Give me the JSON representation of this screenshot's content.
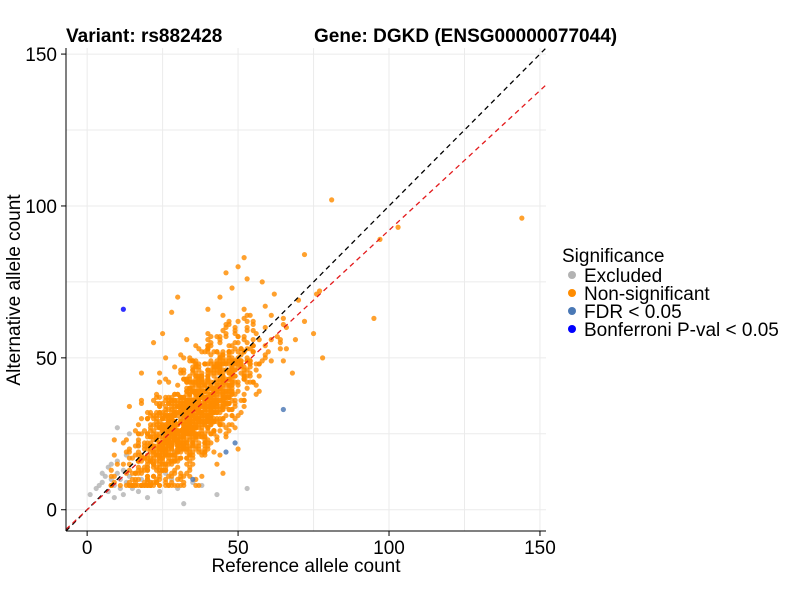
{
  "chart_data": {
    "type": "scatter",
    "title_left": "Variant: rs882428",
    "title_right": "Gene: DGKD (ENSG00000077044)",
    "xlabel": "Reference allele count",
    "ylabel": "Alternative allele count",
    "xlim": [
      -7,
      152
    ],
    "ylim": [
      -7,
      152
    ],
    "x_ticks": [
      0,
      50,
      100,
      150
    ],
    "y_ticks": [
      0,
      50,
      100,
      150
    ],
    "grid": true,
    "reference_lines": [
      {
        "name": "identity",
        "color": "#000000",
        "intercept": 0,
        "slope": 1
      },
      {
        "name": "fit",
        "color": "#e31a1c",
        "intercept": 0,
        "slope": 0.92
      }
    ],
    "legend": {
      "title": "Significance",
      "position": "right",
      "entries": [
        {
          "label": "Excluded",
          "color": "#b3b3b3"
        },
        {
          "label": "Non-significant",
          "color": "#ff8c00"
        },
        {
          "label": "FDR < 0.05",
          "color": "#4a78b5"
        },
        {
          "label": "Bonferroni P-val < 0.05",
          "color": "#0000ff"
        }
      ]
    },
    "series": [
      {
        "name": "Excluded",
        "color": "#b3b3b3",
        "points": [
          [
            1,
            5
          ],
          [
            3,
            7
          ],
          [
            4,
            8
          ],
          [
            5,
            9
          ],
          [
            5,
            12
          ],
          [
            6,
            11
          ],
          [
            7,
            6
          ],
          [
            7,
            14
          ],
          [
            8,
            10
          ],
          [
            8,
            15
          ],
          [
            9,
            4
          ],
          [
            9,
            8
          ],
          [
            10,
            12
          ],
          [
            10,
            16
          ],
          [
            11,
            7
          ],
          [
            11,
            10
          ],
          [
            12,
            5
          ],
          [
            12,
            13
          ],
          [
            13,
            9
          ],
          [
            14,
            11
          ],
          [
            15,
            7
          ],
          [
            16,
            12
          ],
          [
            17,
            6
          ],
          [
            18,
            10
          ],
          [
            19,
            8
          ],
          [
            20,
            14
          ],
          [
            20,
            4
          ],
          [
            21,
            9
          ],
          [
            22,
            15
          ],
          [
            24,
            6
          ],
          [
            26,
            12
          ],
          [
            28,
            10
          ],
          [
            29,
            19
          ],
          [
            30,
            7
          ],
          [
            32,
            2
          ],
          [
            35,
            9
          ],
          [
            38,
            8
          ],
          [
            43,
            5
          ],
          [
            53,
            7
          ],
          [
            10,
            27
          ],
          [
            14,
            25
          ],
          [
            17,
            21
          ],
          [
            13,
            18
          ]
        ]
      },
      {
        "name": "Non-significant",
        "color": "#ff8c00",
        "cluster": {
          "count": 1450,
          "seed": 7,
          "x_mean": 35,
          "x_sd": 10,
          "y_ratio": 0.92,
          "y_sd": 8,
          "x_min": 8,
          "y_min": 8
        },
        "points": [
          [
            144,
            96
          ],
          [
            103,
            93
          ],
          [
            97,
            89
          ],
          [
            95,
            63
          ],
          [
            81,
            102
          ],
          [
            77,
            72
          ],
          [
            76,
            71
          ],
          [
            72,
            84
          ],
          [
            72,
            62
          ],
          [
            70,
            69
          ],
          [
            65,
            63
          ],
          [
            52,
            83
          ],
          [
            50,
            80
          ],
          [
            48,
            73
          ],
          [
            46,
            78
          ],
          [
            58,
            75
          ],
          [
            62,
            71
          ],
          [
            66,
            60
          ],
          [
            78,
            50
          ],
          [
            75,
            58
          ],
          [
            68,
            45
          ],
          [
            60,
            52
          ],
          [
            55,
            62
          ],
          [
            44,
            70
          ],
          [
            40,
            66
          ],
          [
            30,
            70
          ],
          [
            28,
            65
          ],
          [
            45,
            12
          ],
          [
            50,
            20
          ],
          [
            35,
            15
          ],
          [
            18,
            45
          ],
          [
            22,
            55
          ],
          [
            25,
            58
          ]
        ]
      },
      {
        "name": "FDR < 0.05",
        "color": "#4a78b5",
        "points": [
          [
            65,
            33
          ],
          [
            49,
            22
          ],
          [
            46,
            19
          ],
          [
            35,
            10
          ]
        ]
      },
      {
        "name": "Bonferroni P-val < 0.05",
        "color": "#0000ff",
        "points": [
          [
            12,
            66
          ]
        ]
      }
    ]
  }
}
